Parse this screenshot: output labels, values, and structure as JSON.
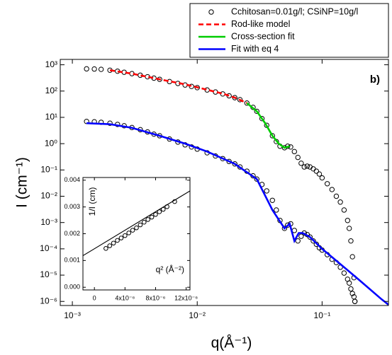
{
  "chart_data": [
    {
      "type": "line",
      "xscale": "log",
      "yscale": "log",
      "xlabel": "q(Å⁻¹)",
      "ylabel": "I (cm⁻¹)",
      "annotation": "b)",
      "legend": "top-right",
      "xlim": [
        0.0008,
        0.34
      ],
      "ylim": [
        7e-07,
        1600
      ],
      "xticks": [
        {
          "value": 0.001,
          "label": "10⁻³"
        },
        {
          "value": 0.01,
          "label": "10⁻²"
        },
        {
          "value": 0.1,
          "label": "10⁻¹"
        }
      ],
      "yticks": [
        {
          "value": 1000,
          "label": "10³"
        },
        {
          "value": 100,
          "label": "10²"
        },
        {
          "value": 10,
          "label": "10¹"
        },
        {
          "value": 1,
          "label": "10⁰"
        },
        {
          "value": 0.1,
          "label": "10⁻¹"
        },
        {
          "value": 0.01,
          "label": "10⁻²"
        },
        {
          "value": 0.001,
          "label": "10⁻³"
        },
        {
          "value": 0.0001,
          "label": "10⁻⁴"
        },
        {
          "value": 1e-05,
          "label": "10⁻⁵"
        },
        {
          "value": 1e-06,
          "label": "10⁻⁶"
        }
      ],
      "series": [
        {
          "name": "Cchitosan=0.01g/l; CSiNP=10g/l",
          "style": "circles",
          "color": "#000000",
          "x": [
            0.0013,
            0.0015,
            0.0017,
            0.002,
            0.0023,
            0.0026,
            0.003,
            0.0035,
            0.004,
            0.0045,
            0.005,
            0.006,
            0.007,
            0.008,
            0.009,
            0.01,
            0.012,
            0.014,
            0.016,
            0.018,
            0.02,
            0.022,
            0.025,
            0.028,
            0.03,
            0.033,
            0.036,
            0.04,
            0.043,
            0.046,
            0.05,
            0.053,
            0.056,
            0.06,
            0.064,
            0.068,
            0.072,
            0.076,
            0.08,
            0.085,
            0.09,
            0.095,
            0.1,
            0.11,
            0.12,
            0.13,
            0.14,
            0.15,
            0.16,
            0.165,
            0.17,
            0.175,
            0.18,
            0.183
          ],
          "y": [
            700,
            690,
            670,
            620,
            570,
            520,
            460,
            400,
            350,
            310,
            280,
            230,
            195,
            170,
            150,
            135,
            110,
            92,
            78,
            66,
            56,
            47,
            35,
            24,
            17,
            9,
            5,
            2,
            1.2,
            0.8,
            0.7,
            0.8,
            0.75,
            0.5,
            0.3,
            0.18,
            0.13,
            0.14,
            0.13,
            0.11,
            0.09,
            0.07,
            0.05,
            0.03,
            0.018,
            0.01,
            0.006,
            0.003,
            0.0012,
            0.0006,
            0.0002,
            5e-05,
            8e-06,
            1e-06
          ]
        },
        {
          "style": "circles",
          "color": "#000000",
          "x": [
            0.0013,
            0.0015,
            0.0017,
            0.002,
            0.0023,
            0.0026,
            0.003,
            0.0035,
            0.004,
            0.0045,
            0.005,
            0.006,
            0.007,
            0.008,
            0.009,
            0.01,
            0.012,
            0.014,
            0.016,
            0.018,
            0.02,
            0.022,
            0.025,
            0.028,
            0.03,
            0.033,
            0.036,
            0.04,
            0.043,
            0.046,
            0.05,
            0.053,
            0.056,
            0.06,
            0.064,
            0.068,
            0.072,
            0.076,
            0.08,
            0.085,
            0.09,
            0.095,
            0.1,
            0.11,
            0.12,
            0.13,
            0.14,
            0.15,
            0.16,
            0.165,
            0.17,
            0.175,
            0.18,
            0.183
          ],
          "y": [
            7,
            6.8,
            6.5,
            6,
            5.4,
            4.8,
            4.1,
            3.4,
            2.8,
            2.3,
            2.0,
            1.5,
            1.15,
            0.9,
            0.75,
            0.62,
            0.45,
            0.34,
            0.27,
            0.21,
            0.17,
            0.13,
            0.09,
            0.06,
            0.045,
            0.028,
            0.016,
            0.007,
            0.003,
            0.0012,
            0.0006,
            0.0008,
            0.0009,
            0.0005,
            0.0002,
            0.0003,
            0.0004,
            0.00035,
            0.00028,
            0.0002,
            0.00015,
            0.00011,
            9e-05,
            6e-05,
            4e-05,
            3e-05,
            2e-05,
            1.2e-05,
            7e-06,
            5e-06,
            3e-06,
            2e-06,
            1.5e-06,
            1e-06
          ]
        },
        {
          "name": "Rod-like model",
          "style": "dashed",
          "color": "#ff0000",
          "x": [
            0.002,
            0.003,
            0.005,
            0.008,
            0.012,
            0.016,
            0.02,
            0.025
          ],
          "y": [
            620,
            460,
            280,
            180,
            112,
            80,
            56,
            35
          ]
        },
        {
          "name": "Cross-section fit",
          "style": "solid",
          "color": "#00cc00",
          "x": [
            0.025,
            0.03,
            0.035,
            0.04,
            0.045,
            0.05,
            0.055
          ],
          "y": [
            35,
            17,
            6,
            2,
            1,
            0.7,
            0.8
          ]
        },
        {
          "name": "Fit with eq 4",
          "style": "solid",
          "color": "#0000ff",
          "x": [
            0.0013,
            0.002,
            0.003,
            0.005,
            0.008,
            0.012,
            0.02,
            0.03,
            0.04,
            0.05,
            0.055,
            0.06,
            0.065,
            0.07,
            0.08,
            0.1,
            0.15,
            0.2,
            0.3,
            0.34
          ],
          "y": [
            6,
            5.5,
            4,
            2,
            1,
            0.5,
            0.17,
            0.045,
            0.003,
            0.0006,
            0.0009,
            0.0002,
            0.0004,
            0.0004,
            0.00028,
            0.0001,
            2e-05,
            6.3e-06,
            1.2e-06,
            7.5e-07
          ]
        }
      ]
    },
    {
      "type": "scatter",
      "xscale": "linear",
      "yscale": "linear",
      "ylabel": "1/I (cm)",
      "annotation": "q² (Å⁻²)",
      "xlim": [
        -1.5e-06,
        1.25e-05
      ],
      "ylim": [
        -0.0001,
        0.0041
      ],
      "xticks": [
        0,
        {
          "value": 4e-06,
          "label": "4x10⁻⁶"
        },
        {
          "value": 8e-06,
          "label": "8x10⁻⁶"
        },
        {
          "value": 1.2e-05,
          "label": "12x10⁻⁶"
        }
      ],
      "yticks": [
        {
          "value": 0,
          "label": "0.000"
        },
        {
          "value": 0.001,
          "label": "0.001"
        },
        {
          "value": 0.002,
          "label": "0.002"
        },
        {
          "value": 0.003,
          "label": "0.003"
        },
        {
          "value": 0.004,
          "label": "0.004"
        }
      ],
      "series": [
        {
          "style": "circles",
          "color": "#000000",
          "x": [
            1.5e-06,
            2e-06,
            2.5e-06,
            3e-06,
            3.5e-06,
            4e-06,
            4.5e-06,
            5e-06,
            5.5e-06,
            6e-06,
            6.5e-06,
            7e-06,
            7.5e-06,
            8e-06,
            8.5e-06,
            9e-06,
            9.5e-06,
            1.05e-05
          ],
          "y": [
            0.00145,
            0.00155,
            0.00165,
            0.00175,
            0.00184,
            0.00193,
            0.00203,
            0.00213,
            0.00222,
            0.00233,
            0.00243,
            0.00253,
            0.00262,
            0.00272,
            0.00282,
            0.00291,
            0.00301,
            0.0032
          ]
        },
        {
          "style": "solid",
          "color": "#000000",
          "x": [
            -1.5e-06,
            1.25e-05
          ],
          "y": [
            0.00118,
            0.0036
          ]
        }
      ]
    }
  ]
}
